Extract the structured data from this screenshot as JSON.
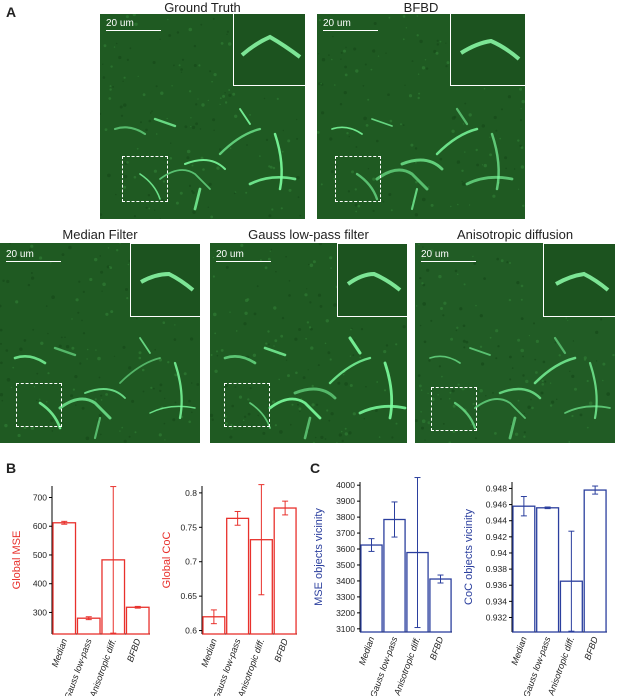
{
  "panels": {
    "a": {
      "letter": "A",
      "images": [
        {
          "id": "gt",
          "title": "Ground Truth",
          "scale": "20 um"
        },
        {
          "id": "bfbd",
          "title": "BFBD",
          "scale": "20 um"
        },
        {
          "id": "median",
          "title": "Median Filter",
          "scale": "20 um"
        },
        {
          "id": "gauss",
          "title": "Gauss low-pass filter",
          "scale": "20 um"
        },
        {
          "id": "aniso",
          "title": "Anisotropic diffusion",
          "scale": "20 um"
        }
      ]
    },
    "b": {
      "letter": "B"
    },
    "c": {
      "letter": "C"
    }
  },
  "colors": {
    "red": "#e8312c",
    "blue": "#2b3f9e",
    "micro_bg": "#1f5a22",
    "signal": "#7dffa0"
  },
  "chart_data": [
    {
      "type": "bar",
      "ylabel": "Global  MSE",
      "categories": [
        "Median",
        "Gauss low-pass",
        "Anisotropic diff.",
        "BFBD"
      ],
      "values": [
        612,
        280,
        483,
        318
      ],
      "errors": [
        5,
        5,
        255,
        3
      ],
      "ylim": [
        225,
        740
      ],
      "yticks": [
        300,
        400,
        500,
        600,
        700
      ],
      "ytick_labels": [
        "300",
        "400",
        "500",
        "600",
        "700"
      ]
    },
    {
      "type": "bar",
      "ylabel": "Global CoC",
      "categories": [
        "Median",
        "Gauss low-pass",
        "Anisotropic diff.",
        "BFBD"
      ],
      "values": [
        0.62,
        0.763,
        0.732,
        0.778
      ],
      "errors": [
        0.01,
        0.01,
        0.08,
        0.01
      ],
      "ylim": [
        0.595,
        0.81
      ],
      "yticks": [
        0.6,
        0.65,
        0.7,
        0.75,
        0.8
      ],
      "ytick_labels": [
        "0.6",
        "0.65",
        "0.7",
        "0.75",
        "0.8"
      ]
    },
    {
      "type": "bar",
      "ylabel": "MSE objects vicinity",
      "categories": [
        "Median",
        "Gauss low-pass",
        "Anisotropic diff.",
        "BFBD"
      ],
      "values": [
        3625,
        3785,
        3578,
        3412
      ],
      "errors": [
        40,
        110,
        470,
        25
      ],
      "ylim": [
        3080,
        4020
      ],
      "yticks": [
        3100,
        3200,
        3300,
        3400,
        3500,
        3600,
        3700,
        3800,
        3900,
        4000
      ],
      "ytick_labels": [
        "3100",
        "3200",
        "3300",
        "3400",
        "3500",
        "3600",
        "3700",
        "3800",
        "3900",
        "4000"
      ]
    },
    {
      "type": "bar",
      "ylabel": "CoC objects vicinity",
      "categories": [
        "Median",
        "Gauss low-pass",
        "Anisotropic diff.",
        "BFBD"
      ],
      "values": [
        0.9458,
        0.9456,
        0.9365,
        0.9478
      ],
      "errors": [
        0.0012,
        0.0001,
        0.0062,
        0.0005
      ],
      "ylim": [
        0.9302,
        0.9488
      ],
      "yticks": [
        0.932,
        0.934,
        0.936,
        0.938,
        0.94,
        0.942,
        0.944,
        0.946,
        0.948
      ],
      "ytick_labels": [
        "0.932",
        "0.934",
        "0.936",
        "0.938",
        "0.94",
        "0.942",
        "0.944",
        "0.946",
        "0.948"
      ]
    }
  ]
}
